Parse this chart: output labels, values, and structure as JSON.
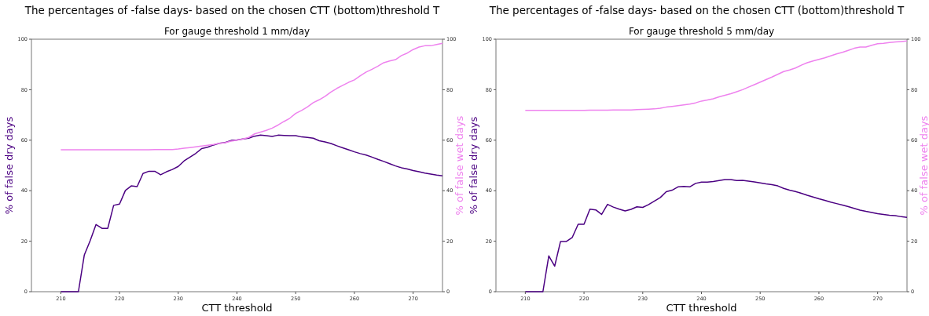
{
  "chart_data": [
    {
      "type": "line",
      "title": "The percentages of -false days- based on the chosen CTT (bottom)threshold T",
      "subtitle": "For gauge threshold 1 mm/day",
      "xlabel": "CTT threshold",
      "ylabel": "% of false dry days",
      "y2label": "% of false wet days",
      "x": [
        210,
        211,
        212,
        213,
        214,
        215,
        216,
        217,
        218,
        219,
        220,
        221,
        222,
        223,
        224,
        225,
        226,
        227,
        228,
        229,
        230,
        231,
        232,
        233,
        234,
        235,
        236,
        237,
        238,
        239,
        240,
        241,
        242,
        243,
        244,
        245,
        246,
        247,
        248,
        249,
        250,
        251,
        252,
        253,
        254,
        255,
        256,
        257,
        258,
        259,
        260,
        261,
        262,
        263,
        264,
        265,
        266,
        267,
        268,
        269,
        270,
        271,
        272,
        273,
        274,
        275
      ],
      "xlim": [
        205,
        275
      ],
      "xticks": [
        210,
        220,
        230,
        240,
        250,
        260,
        270
      ],
      "ylim": [
        0,
        100
      ],
      "yticks": [
        0,
        20,
        40,
        60,
        80,
        100
      ],
      "y2lim": [
        0,
        100
      ],
      "y2ticks": [
        0,
        20,
        40,
        60,
        80,
        100
      ],
      "grid": false,
      "series": [
        {
          "color": "#4b0082",
          "values": [
            0,
            0,
            0,
            0,
            14.5,
            20.2,
            26.6,
            25.1,
            25.1,
            34.2,
            34.7,
            40.1,
            41.9,
            41.6,
            46.8,
            47.7,
            47.7,
            46.3,
            47.5,
            48.4,
            49.6,
            51.8,
            53.3,
            54.8,
            56.7,
            57.2,
            58.1,
            58.8,
            59.1,
            59.9,
            60.1,
            60.5,
            60.8,
            61.6,
            62.0,
            61.8,
            61.5,
            62.0,
            61.9,
            61.8,
            61.8,
            61.3,
            61.1,
            60.8,
            59.8,
            59.3,
            58.7,
            57.8,
            57.0,
            56.2,
            55.4,
            54.7,
            54.1,
            53.3,
            52.4,
            51.6,
            50.7,
            49.8,
            49.1,
            48.6,
            48.0,
            47.5,
            47.0,
            46.6,
            46.2,
            45.9
          ]
        },
        {
          "color": "#ee82ee",
          "axis": "y2",
          "values": [
            56.2,
            56.2,
            56.2,
            56.2,
            56.2,
            56.2,
            56.2,
            56.2,
            56.2,
            56.2,
            56.2,
            56.2,
            56.2,
            56.2,
            56.2,
            56.2,
            56.3,
            56.3,
            56.3,
            56.3,
            56.5,
            56.8,
            57.1,
            57.4,
            57.7,
            58.0,
            58.3,
            58.8,
            59.0,
            59.6,
            60.0,
            60.5,
            61.1,
            62.5,
            63.2,
            63.9,
            64.8,
            66.0,
            67.4,
            68.7,
            70.6,
            71.8,
            73.2,
            74.9,
            76.0,
            77.4,
            79.1,
            80.5,
            81.7,
            82.9,
            83.9,
            85.5,
            87.0,
            88.1,
            89.3,
            90.7,
            91.4,
            91.9,
            93.5,
            94.5,
            95.9,
            96.9,
            97.4,
            97.4,
            97.9,
            98.4
          ]
        }
      ]
    },
    {
      "type": "line",
      "title": "The percentages of -false days- based on the chosen CTT (bottom)threshold T",
      "subtitle": "For gauge threshold 5 mm/day",
      "xlabel": "CTT threshold",
      "ylabel": "% of false dry days",
      "y2label": "% of false wet days",
      "x": [
        210,
        211,
        212,
        213,
        214,
        215,
        216,
        217,
        218,
        219,
        220,
        221,
        222,
        223,
        224,
        225,
        226,
        227,
        228,
        229,
        230,
        231,
        232,
        233,
        234,
        235,
        236,
        237,
        238,
        239,
        240,
        241,
        242,
        243,
        244,
        245,
        246,
        247,
        248,
        249,
        250,
        251,
        252,
        253,
        254,
        255,
        256,
        257,
        258,
        259,
        260,
        261,
        262,
        263,
        264,
        265,
        266,
        267,
        268,
        269,
        270,
        271,
        272,
        273,
        274,
        275
      ],
      "xlim": [
        205,
        275
      ],
      "xticks": [
        210,
        220,
        230,
        240,
        250,
        260,
        270
      ],
      "ylim": [
        0,
        100
      ],
      "yticks": [
        0,
        20,
        40,
        60,
        80,
        100
      ],
      "y2lim": [
        0,
        100
      ],
      "y2ticks": [
        0,
        20,
        40,
        60,
        80,
        100
      ],
      "grid": false,
      "series": [
        {
          "color": "#4b0082",
          "values": [
            0,
            0,
            0,
            0,
            14.2,
            10.1,
            19.9,
            19.9,
            21.5,
            26.7,
            26.7,
            32.7,
            32.4,
            30.6,
            34.6,
            33.5,
            32.7,
            32.0,
            32.6,
            33.6,
            33.4,
            34.5,
            35.9,
            37.3,
            39.6,
            40.2,
            41.5,
            41.7,
            41.5,
            42.9,
            43.4,
            43.4,
            43.6,
            44.0,
            44.4,
            44.4,
            44.0,
            44.1,
            43.8,
            43.5,
            43.1,
            42.7,
            42.4,
            41.9,
            40.9,
            40.2,
            39.7,
            39.0,
            38.2,
            37.5,
            36.8,
            36.2,
            35.5,
            34.9,
            34.3,
            33.7,
            33.0,
            32.3,
            31.8,
            31.4,
            30.9,
            30.6,
            30.3,
            30.1,
            29.7,
            29.4
          ]
        },
        {
          "color": "#ee82ee",
          "axis": "y2",
          "values": [
            71.8,
            71.8,
            71.8,
            71.8,
            71.8,
            71.8,
            71.8,
            71.8,
            71.8,
            71.8,
            71.8,
            71.9,
            71.9,
            71.9,
            71.9,
            72.0,
            72.0,
            72.0,
            72.0,
            72.1,
            72.2,
            72.3,
            72.4,
            72.7,
            73.1,
            73.4,
            73.7,
            74.0,
            74.3,
            74.8,
            75.5,
            75.9,
            76.4,
            77.2,
            77.8,
            78.4,
            79.2,
            80.0,
            81.0,
            82.0,
            83.0,
            84.0,
            85.0,
            86.1,
            87.2,
            87.8,
            88.6,
            89.7,
            90.7,
            91.4,
            92.0,
            92.6,
            93.4,
            94.2,
            94.8,
            95.6,
            96.4,
            96.9,
            96.9,
            97.6,
            98.2,
            98.4,
            98.7,
            98.9,
            99.1,
            99.3
          ]
        }
      ]
    }
  ]
}
